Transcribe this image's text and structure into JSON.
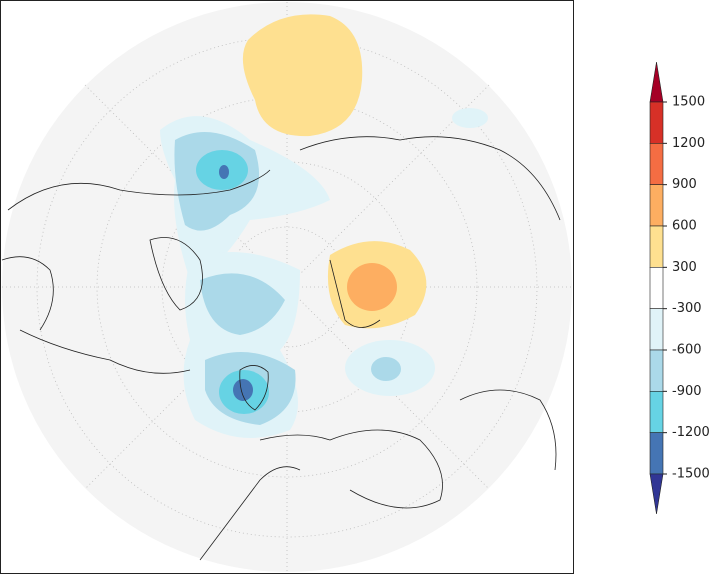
{
  "colorbar": {
    "ticks": [
      1500,
      1200,
      900,
      600,
      300,
      -300,
      -600,
      -900,
      -1200,
      -1500
    ],
    "colors": [
      "#a50026",
      "#d73027",
      "#f46d43",
      "#fdae61",
      "#fee090",
      "#ffffff",
      "#e0f3f8",
      "#abd9e9",
      "#66d3e4",
      "#4575b4",
      "#313695"
    ]
  }
}
